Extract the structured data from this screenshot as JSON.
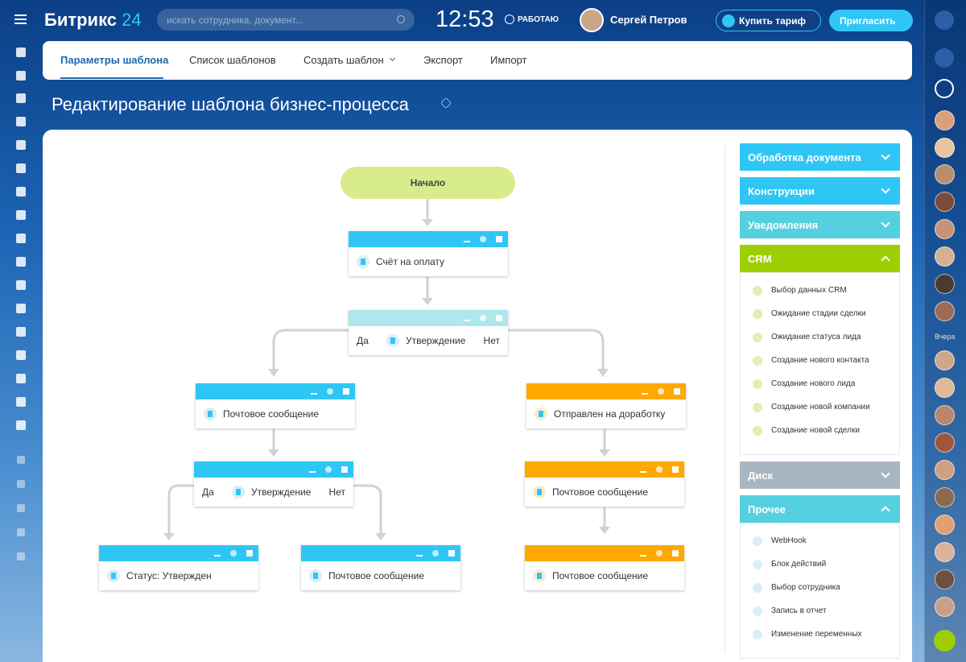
{
  "header": {
    "logo": "Битрикс",
    "logo_number": "24",
    "search_placeholder": "искать сотрудника, документ...",
    "time": "12:53",
    "status": "РАБОТАЮ",
    "user": "Сергей Петров",
    "buy": "Купить тариф",
    "invite": "Пригласить"
  },
  "tabs": [
    "Параметры шаблона",
    "Список шаблонов",
    "Создать шаблон",
    "Экспорт",
    "Импорт"
  ],
  "page_title": "Редактирование шаблона бизнес-процесса",
  "diagram": {
    "start": "Начало",
    "nodes": [
      {
        "label": "Счёт на оплату"
      },
      {
        "yes": "Да",
        "label": "Утверждение",
        "no": "Нет"
      },
      {
        "label": "Почтовое сообщение"
      },
      {
        "label": "Отправлен на доработку"
      },
      {
        "yes": "Да",
        "label": "Утверждение",
        "no": "Нет"
      },
      {
        "label": "Почтовое сообщение"
      },
      {
        "label": "Статус: Утвержден"
      },
      {
        "label": "Почтовое сообщение"
      },
      {
        "label": "Почтовое сообщение"
      }
    ]
  },
  "panel": {
    "sections": [
      {
        "title": "Обработка документа"
      },
      {
        "title": "Конструкции"
      },
      {
        "title": "Уведомления"
      },
      {
        "title": "CRM",
        "items": [
          "Выбор данных CRM",
          "Ожидание стадии сделки",
          "Ожидание статуса лида",
          "Создание нового контакта",
          "Создание нового лида",
          "Создание новой компании",
          "Создание новой сделки"
        ]
      },
      {
        "title": "Диск"
      },
      {
        "title": "Прочее",
        "items": [
          "WebHook",
          "Блок действий",
          "Выбор сотрудника",
          "Запись в отчет",
          "Изменение переменных"
        ]
      }
    ]
  },
  "sidebar": {
    "yesterday": "Вчера"
  }
}
